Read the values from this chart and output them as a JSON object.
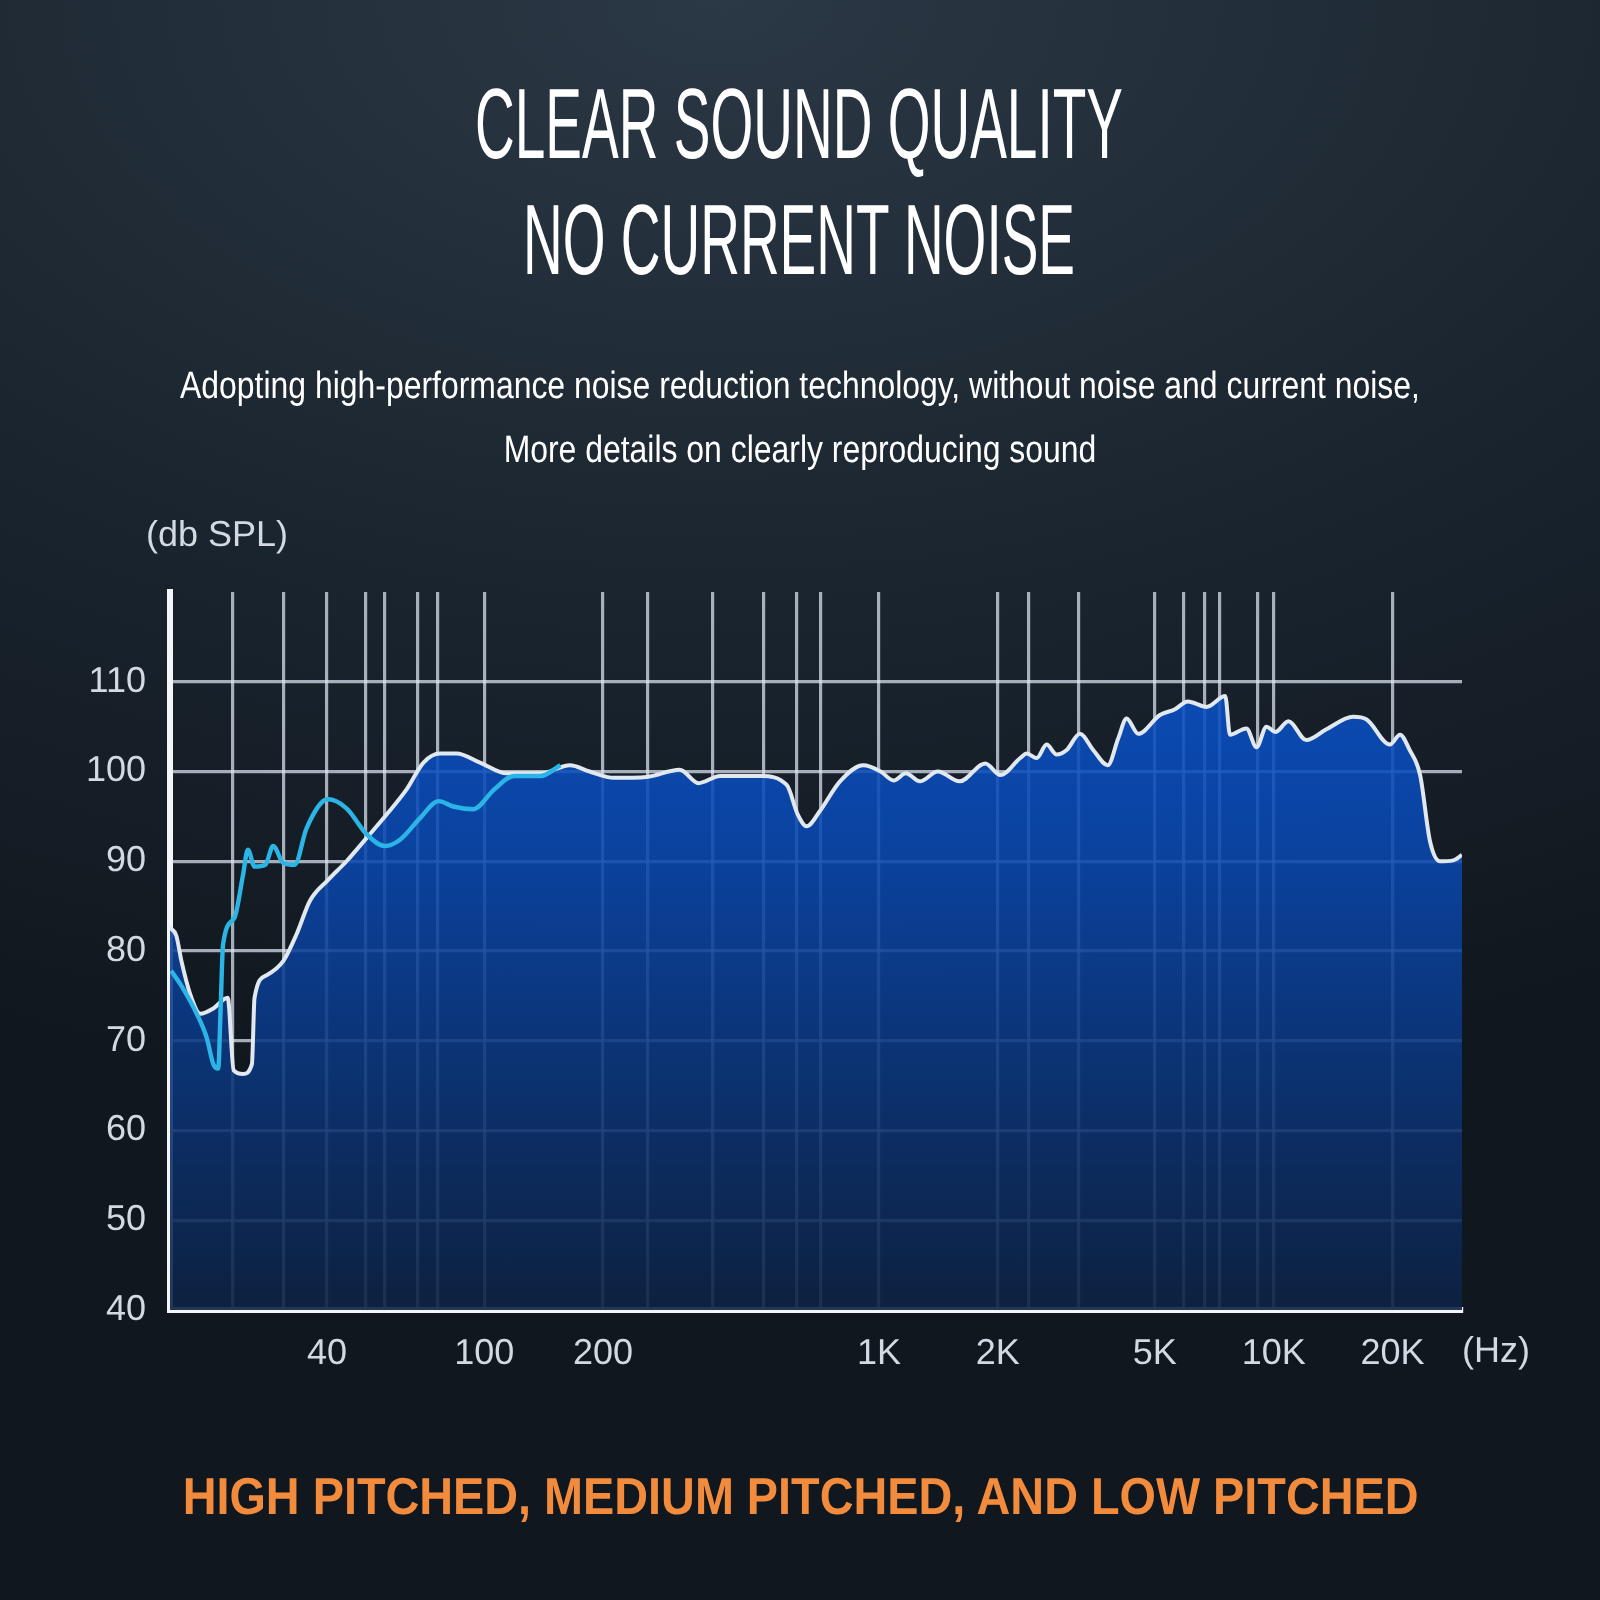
{
  "chart_data": {
    "type": "area",
    "title": "CLEAR SOUND QUALITY\nNO CURRENT NOISE",
    "subtitle": "Adopting high-performance noise reduction technology, without noise and current noise,\nMore details on clearly reproducing sound",
    "xlabel": "(Hz)",
    "ylabel": "(db SPL)",
    "annotations": [
      "HIGH PITCHED, MEDIUM PITCHED, AND LOW PITCHED"
    ],
    "log": "x",
    "grid": true,
    "xlim": [
      16,
      30000
    ],
    "ylim": [
      40,
      120
    ],
    "xticks": [
      {
        "value": 23,
        "label": null
      },
      {
        "value": 31,
        "label": null
      },
      40,
      {
        "value": 50,
        "label": null
      },
      {
        "value": 56,
        "label": null
      },
      {
        "value": 68,
        "label": null
      },
      {
        "value": 76,
        "label": null
      },
      100,
      200,
      {
        "value": 260,
        "label": null
      },
      {
        "value": 380,
        "label": null
      },
      {
        "value": 510,
        "label": null
      },
      {
        "value": 620,
        "label": null
      },
      {
        "value": 710,
        "label": null
      },
      {
        "value": 1000,
        "label": "1K"
      },
      {
        "value": 2000,
        "label": "2K"
      },
      {
        "value": 2400,
        "label": null
      },
      {
        "value": 3200,
        "label": null
      },
      {
        "value": 5000,
        "label": "5K"
      },
      {
        "value": 5900,
        "label": null
      },
      {
        "value": 6700,
        "label": null
      },
      {
        "value": 7300,
        "label": null
      },
      {
        "value": 9100,
        "label": null
      },
      {
        "value": 10000,
        "label": "10K"
      },
      {
        "value": 20000,
        "label": "20K"
      }
    ],
    "yticks": [
      40,
      50,
      60,
      70,
      80,
      90,
      100,
      110
    ],
    "series": [
      {
        "color": "#0a55d0",
        "x": [
          16,
          16.6,
          17.1,
          18,
          19.1,
          20.6,
          22.4,
          23.2,
          24.5,
          25.8,
          26.2,
          28.1,
          31,
          33.5,
          36.2,
          40.2,
          44.8,
          50.4,
          56.6,
          63.6,
          70.2,
          77.3,
          85.1,
          97.6,
          114,
          139,
          165,
          185,
          213,
          258,
          313,
          349,
          396,
          500,
          584,
          623,
          656,
          709,
          797,
          913,
          1010,
          1090,
          1170,
          1270,
          1410,
          1600,
          1860,
          2030,
          2280,
          2370,
          2510,
          2660,
          2820,
          2990,
          3230,
          3490,
          3800,
          4040,
          4240,
          4540,
          5150,
          5610,
          6060,
          6760,
          7540,
          7750,
          8530,
          9050,
          9590,
          10100,
          10900,
          12100,
          13600,
          15900,
          17200,
          19700,
          20900,
          22100,
          23500,
          24900,
          26400,
          28500,
          30000
        ],
        "values": [
          82.6,
          81.7,
          78.9,
          75.2,
          73.0,
          73.6,
          74.8,
          66.7,
          66.3,
          67.4,
          74.8,
          77.3,
          78.9,
          81.9,
          85.6,
          87.9,
          90.0,
          92.6,
          95.2,
          98.0,
          101.0,
          102.0,
          102.0,
          101.0,
          99.8,
          99.8,
          100.7,
          100.0,
          99.3,
          99.4,
          100.2,
          98.7,
          99.5,
          99.5,
          98.5,
          95.2,
          93.9,
          95.6,
          98.9,
          100.7,
          100.0,
          99.0,
          99.8,
          98.9,
          100.0,
          98.9,
          100.9,
          99.6,
          101.5,
          102.0,
          101.5,
          103.0,
          101.9,
          102.4,
          104.2,
          102.4,
          100.7,
          103.7,
          105.9,
          104.2,
          106.3,
          106.9,
          107.8,
          107.2,
          108.4,
          104.1,
          104.8,
          102.7,
          105.0,
          104.4,
          105.6,
          103.5,
          104.7,
          106.1,
          105.8,
          103.0,
          104.1,
          102.4,
          99.6,
          92.2,
          90.0,
          90.1,
          90.7
        ]
      },
      {
        "type": "line",
        "color": "#2bb5e6",
        "x": [
          16.1,
          17,
          18.7,
          19.8,
          20.6,
          21.2,
          21.5,
          21.8,
          23.3,
          24.5,
          25.2,
          26.2,
          27.9,
          29.2,
          31,
          33.1,
          35.5,
          40.2,
          44.8,
          50.4,
          56,
          61.2,
          68.8,
          76.7,
          83.5,
          93.9,
          106,
          119,
          139,
          156
        ],
        "values": [
          77.8,
          76.3,
          73.0,
          70.4,
          67.4,
          66.9,
          73.7,
          80.7,
          83.7,
          88.5,
          91.3,
          89.4,
          89.6,
          91.7,
          89.8,
          89.6,
          93.7,
          96.9,
          95.9,
          93.0,
          91.7,
          92.4,
          94.8,
          96.7,
          96.1,
          95.8,
          98.0,
          99.5,
          99.5,
          100.7
        ]
      }
    ]
  }
}
